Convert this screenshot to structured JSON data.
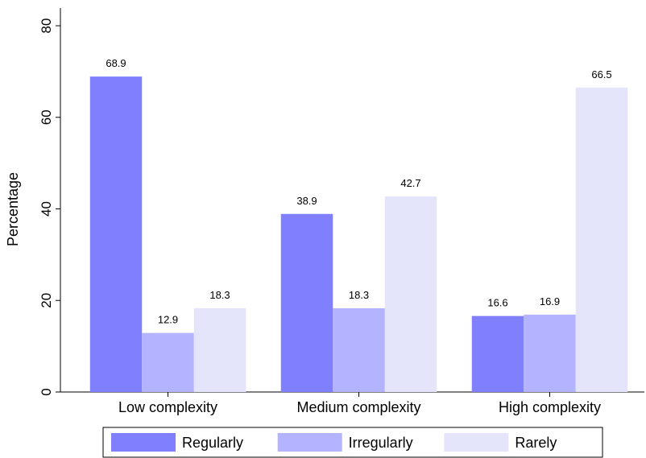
{
  "chart_data": {
    "type": "bar",
    "y_label": "Percentage",
    "categories": [
      "Low complexity",
      "Medium complexity",
      "High complexity"
    ],
    "series": [
      {
        "name": "Regularly",
        "color": "#8080ff",
        "values": [
          68.9,
          38.9,
          16.6
        ]
      },
      {
        "name": "Irregularly",
        "color": "#b3b3ff",
        "values": [
          12.9,
          18.3,
          16.9
        ]
      },
      {
        "name": "Rarely",
        "color": "#e4e4fb",
        "values": [
          18.3,
          42.7,
          66.5
        ]
      }
    ],
    "ylim": [
      0,
      80
    ],
    "yticks": [
      0,
      20,
      40,
      60,
      80
    ],
    "legend": "bottom"
  }
}
